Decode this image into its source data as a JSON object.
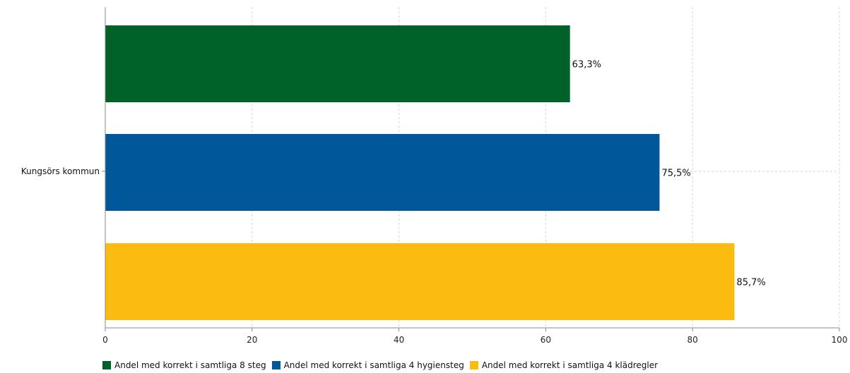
{
  "chart_data": {
    "type": "bar",
    "orientation": "horizontal",
    "categories": [
      "Kungsörs kommun"
    ],
    "series": [
      {
        "name": "Andel med korrekt i samtliga 8 steg",
        "values": [
          63.3
        ],
        "label": "63,3%",
        "color": "#006129"
      },
      {
        "name": "Andel med korrekt i samtliga 4 hygiensteg",
        "values": [
          75.5
        ],
        "label": "75,5%",
        "color": "#00589a"
      },
      {
        "name": "Andel med korrekt i samtliga 4 klädregler",
        "values": [
          85.7
        ],
        "label": "85,7%",
        "color": "#fcbb11"
      }
    ],
    "xlim": [
      0,
      100
    ],
    "xticks": [
      0,
      20,
      40,
      60,
      80,
      100
    ],
    "grid": true,
    "legend": "bottom"
  }
}
